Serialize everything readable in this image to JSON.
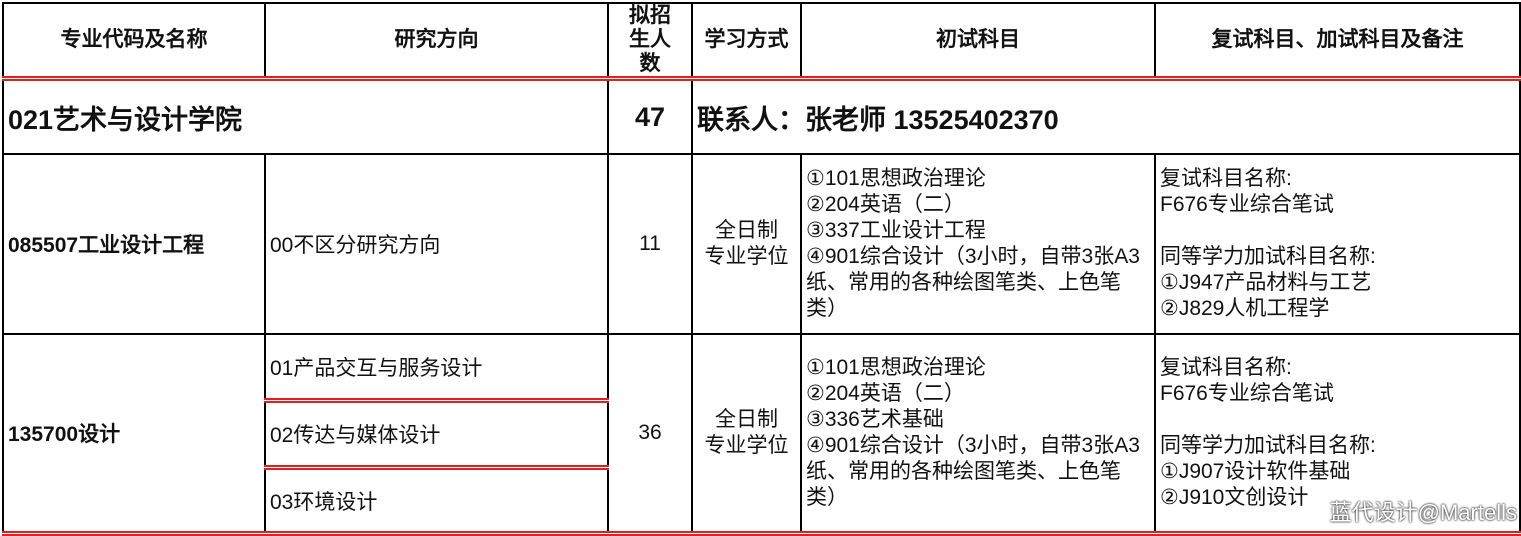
{
  "header": {
    "columns": [
      "专业代码及名称",
      "研究方向",
      "拟招生人数",
      "学习方式",
      "初试科目",
      "复试科目、加试科目及备注"
    ]
  },
  "college": {
    "name": "021艺术与设计学院",
    "quota": "47",
    "contact": "联系人：张老师  13525402370"
  },
  "programs": [
    {
      "code_name": "085507工业设计工程",
      "directions": [
        "00不区分研究方向"
      ],
      "quota": "11",
      "mode": [
        "全日制",
        "专业学位"
      ],
      "subjects": [
        "①101思想政治理论",
        "②204英语（二）",
        "③337工业设计工程",
        "④901综合设计（3小时，自带3张A3纸、常用的各种绘图笔类、上色笔类）"
      ],
      "retest": {
        "title": "复试科目名称:",
        "items": [
          "F676专业综合笔试"
        ]
      },
      "equivalent": {
        "title": "同等学力加试科目名称:",
        "items": [
          "①J947产品材料与工艺",
          "②J829人机工程学"
        ]
      }
    },
    {
      "code_name": "135700设计",
      "directions": [
        "01产品交互与服务设计",
        "02传达与媒体设计",
        "03环境设计"
      ],
      "quota": "36",
      "mode": [
        "全日制",
        "专业学位"
      ],
      "subjects": [
        "①101思想政治理论",
        "②204英语（二）",
        "③336艺术基础",
        "④901综合设计（3小时，自带3张A3纸、常用的各种绘图笔类、上色笔类）"
      ],
      "retest": {
        "title": "复试科目名称:",
        "items": [
          "F676专业综合笔试"
        ]
      },
      "equivalent": {
        "title": "同等学力加试科目名称:",
        "items": [
          "①J907设计软件基础",
          "②J910文创设计"
        ]
      }
    }
  ],
  "watermark": "蓝代设计@Martells"
}
